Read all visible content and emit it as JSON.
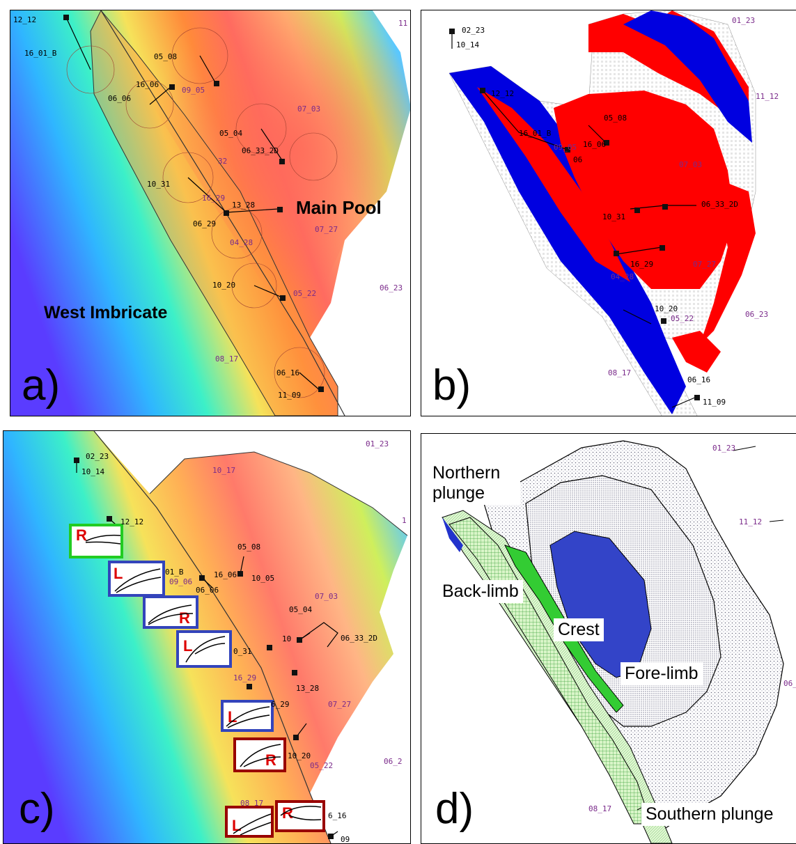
{
  "panels": {
    "a": {
      "label": "a)",
      "title_main_pool": "Main Pool",
      "title_west": "West Imbricate"
    },
    "b": {
      "label": "b)"
    },
    "c": {
      "label": "c)"
    },
    "d": {
      "label": "d)"
    }
  },
  "wells_a": [
    "12_12",
    "16_01_B",
    "05_08",
    "16_06",
    "09_05",
    "06_06",
    "07_03",
    "05_04",
    "06_33_2D",
    "10_31",
    "32",
    "16_29",
    "13_28",
    "06_29",
    "07_27",
    "04_28",
    "10_20",
    "05_22",
    "06_23",
    "08_17",
    "06_16",
    "11_09",
    "11"
  ],
  "wells_b": [
    "02_23",
    "10_14",
    "01_23",
    "12_12",
    "16_01_B",
    "05_08",
    "16_06",
    "09_05",
    "06",
    "11_12",
    "07_03",
    "06_33_2D",
    "10_31",
    "07_27",
    "16_29",
    "04_28",
    "10_20",
    "05_22",
    "06_23",
    "08_17",
    "06_16",
    "11_09"
  ],
  "wells_c": [
    "02_23",
    "10_14",
    "01_23",
    "10_17",
    "12_12",
    "05_08",
    "01_B",
    "09_06",
    "16_06",
    "10_05",
    "06_06",
    "07_03",
    "05_04",
    "10",
    "06_33_2D",
    "0_31",
    "16_29",
    "13_28",
    "6_29",
    "07_27",
    "10_20",
    "05_22",
    "06_2",
    "08_17",
    "6_16",
    "09",
    "1"
  ],
  "wells_d": [
    "01_23",
    "11_12",
    "06_2",
    "08_17"
  ],
  "zones_d": {
    "northern": "Northern plunge",
    "backlimb": "Back-limb",
    "crest": "Crest",
    "forelimb": "Fore-limb",
    "southern": "Southern plunge"
  },
  "markers_c": [
    "R",
    "L",
    "R",
    "L",
    "L",
    "R",
    "L",
    "R"
  ],
  "colors": {
    "red_zone": "#ff0000",
    "blue_zone": "#0000e0",
    "green_box": "#22cc22",
    "blue_box": "#3344bb",
    "maroon_box": "#990000",
    "well_purple": "#7a2a8a"
  }
}
